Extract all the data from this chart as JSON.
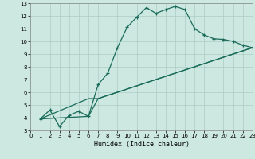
{
  "xlabel": "Humidex (Indice chaleur)",
  "xlim": [
    0,
    23
  ],
  "ylim": [
    3,
    13
  ],
  "xticks": [
    0,
    1,
    2,
    3,
    4,
    5,
    6,
    7,
    8,
    9,
    10,
    11,
    12,
    13,
    14,
    15,
    16,
    17,
    18,
    19,
    20,
    21,
    22,
    23
  ],
  "yticks": [
    3,
    4,
    5,
    6,
    7,
    8,
    9,
    10,
    11,
    12,
    13
  ],
  "bg_color": "#cce8e0",
  "grid_color": "#aaccc4",
  "line_color": "#1a6b5a",
  "line1_x": [
    1,
    2,
    3,
    4,
    5,
    6,
    7,
    8,
    9,
    10,
    11,
    12,
    13,
    14,
    15,
    16,
    17,
    18,
    19,
    20,
    21,
    22,
    23
  ],
  "line1_y": [
    3.9,
    4.6,
    3.3,
    4.2,
    4.5,
    4.1,
    6.6,
    7.5,
    9.5,
    11.1,
    11.9,
    12.65,
    12.2,
    12.5,
    12.75,
    12.5,
    11.0,
    10.5,
    10.2,
    10.15,
    10.0,
    9.7,
    9.5
  ],
  "line2_x": [
    1,
    6,
    7,
    23
  ],
  "line2_y": [
    3.9,
    5.5,
    5.5,
    9.5
  ],
  "line3_x": [
    1,
    6,
    7,
    23
  ],
  "line3_y": [
    3.9,
    4.1,
    5.5,
    9.5
  ]
}
